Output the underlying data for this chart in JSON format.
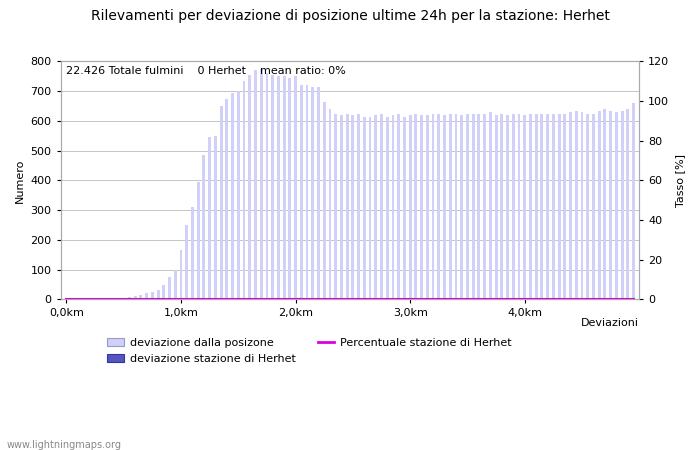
{
  "title": "Rilevamenti per deviazione di posizione ultime 24h per la stazione: Herhet",
  "subtitle": "22.426 Totale fulmini    0 Herhet    mean ratio: 0%",
  "xlabel": "Deviazioni",
  "ylabel_left": "Numero",
  "ylabel_right": "Tasso [%]",
  "watermark": "www.lightningmaps.org",
  "bar_color": "#d0d0f8",
  "bar_color_station": "#5555bb",
  "line_color": "#dd00dd",
  "ylim_left": [
    0,
    800
  ],
  "ylim_right": [
    0,
    120
  ],
  "yticks_left": [
    0,
    100,
    200,
    300,
    400,
    500,
    600,
    700,
    800
  ],
  "yticks_right": [
    0,
    20,
    40,
    60,
    80,
    100,
    120
  ],
  "xtick_labels": [
    "0,0km",
    "1,0km",
    "2,0km",
    "3,0km",
    "4,0km"
  ],
  "xtick_positions": [
    0,
    20,
    40,
    60,
    80
  ],
  "n_bars": 100,
  "bar_values": [
    1,
    1,
    2,
    1,
    2,
    3,
    2,
    4,
    3,
    5,
    5,
    8,
    10,
    15,
    20,
    25,
    30,
    50,
    75,
    100,
    165,
    250,
    310,
    395,
    485,
    545,
    548,
    650,
    675,
    695,
    700,
    735,
    755,
    770,
    775,
    760,
    755,
    750,
    750,
    745,
    750,
    720,
    720,
    715,
    715,
    665,
    640,
    625,
    620,
    625,
    620,
    625,
    615,
    615,
    620,
    625,
    615,
    620,
    625,
    615,
    620,
    625,
    620,
    620,
    625,
    625,
    620,
    625,
    625,
    620,
    625,
    625,
    625,
    625,
    630,
    620,
    625,
    620,
    625,
    625,
    620,
    625,
    625,
    625,
    625,
    625,
    625,
    625,
    630,
    635,
    630,
    625,
    625,
    635,
    640,
    635,
    630,
    635,
    640,
    660
  ],
  "station_bar_values": [
    0,
    0,
    0,
    0,
    0,
    0,
    0,
    0,
    0,
    0,
    0,
    0,
    0,
    0,
    0,
    0,
    0,
    0,
    0,
    0,
    0,
    0,
    0,
    0,
    0,
    0,
    0,
    0,
    0,
    0,
    0,
    0,
    0,
    0,
    0,
    0,
    0,
    0,
    0,
    0,
    0,
    0,
    0,
    0,
    0,
    0,
    0,
    0,
    0,
    0,
    0,
    0,
    0,
    0,
    0,
    0,
    0,
    0,
    0,
    0,
    0,
    0,
    0,
    0,
    0,
    0,
    0,
    0,
    0,
    0,
    0,
    0,
    0,
    0,
    0,
    0,
    0,
    0,
    0,
    0,
    0,
    0,
    0,
    0,
    0,
    0,
    0,
    0,
    0,
    0,
    0,
    0,
    0,
    0,
    0,
    0,
    0,
    0,
    0,
    0
  ],
  "percentage_values": [
    0,
    0,
    0,
    0,
    0,
    0,
    0,
    0,
    0,
    0,
    0,
    0,
    0,
    0,
    0,
    0,
    0,
    0,
    0,
    0,
    0,
    0,
    0,
    0,
    0,
    0,
    0,
    0,
    0,
    0,
    0,
    0,
    0,
    0,
    0,
    0,
    0,
    0,
    0,
    0,
    0,
    0,
    0,
    0,
    0,
    0,
    0,
    0,
    0,
    0,
    0,
    0,
    0,
    0,
    0,
    0,
    0,
    0,
    0,
    0,
    0,
    0,
    0,
    0,
    0,
    0,
    0,
    0,
    0,
    0,
    0,
    0,
    0,
    0,
    0,
    0,
    0,
    0,
    0,
    0,
    0,
    0,
    0,
    0,
    0,
    0,
    0,
    0,
    0,
    0,
    0,
    0,
    0,
    0,
    0,
    0,
    0,
    0,
    0,
    0
  ],
  "background_color": "#ffffff",
  "grid_color": "#bbbbbb",
  "title_fontsize": 10,
  "subtitle_fontsize": 8,
  "axis_fontsize": 8,
  "tick_fontsize": 8,
  "bar_width": 0.5
}
